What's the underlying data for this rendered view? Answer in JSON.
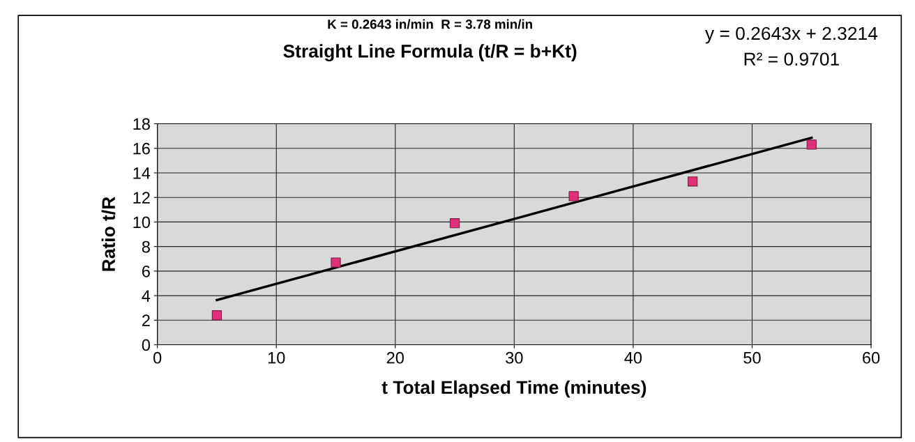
{
  "chart_data": {
    "type": "scatter",
    "subtitle": "K = 0.2643 in/min  R = 3.78 min/in",
    "title": "Straight Line Formula (t/R = b+Kt)",
    "xlabel": "t Total Elapsed Time (minutes)",
    "ylabel": "Ratio t/R",
    "annotations": [
      "y = 0.2643x + 2.3214",
      "R² = 0.9701"
    ],
    "series": [
      {
        "color": "#e0307a",
        "marker": "square",
        "x": [
          5,
          15,
          25,
          35,
          45,
          55
        ],
        "values": [
          2.4,
          6.7,
          9.9,
          12.1,
          13.3,
          16.3
        ]
      },
      {
        "type": "line",
        "color": "#000000",
        "marker": "none",
        "line_style": "solid",
        "x": [
          5,
          55
        ],
        "values": [
          3.64,
          16.86
        ]
      }
    ],
    "xlim": [
      0,
      60
    ],
    "xticks": [
      0,
      10,
      20,
      30,
      40,
      50,
      60
    ],
    "ylim": [
      0,
      18
    ],
    "yticks": [
      0,
      2,
      4,
      6,
      8,
      10,
      12,
      14,
      16,
      18
    ],
    "grid": true,
    "legend": false
  }
}
